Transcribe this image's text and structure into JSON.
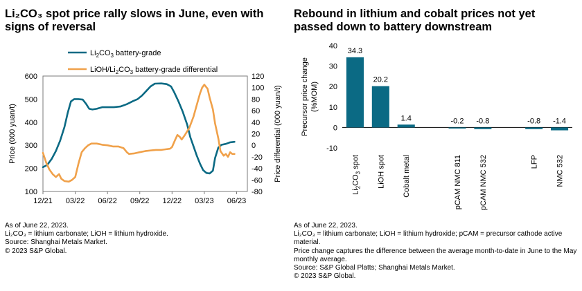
{
  "left": {
    "title": "Li₂CO₃ spot price rally slows in June, even with signs of reversal",
    "notes": [
      "As of June 22, 2023.",
      "Li₂CO₃ = lithium carbonate; LiOH = lithium hydroxide.",
      "Source: Shanghai Metals Market.",
      "© 2023 S&P Global."
    ]
  },
  "right": {
    "title": "Rebound in lithium and cobalt prices not yet passed down to battery downstream",
    "notes": [
      "As of June 22, 2023.",
      "Li₂CO₃ = lithium carbonate; LiOH = lithium hydroxide; pCAM = precursor cathode active material.",
      "Price change captures the difference between the average month-to-date in June to the May monthly average.",
      "Source: S&P Global Platts; Shanghai Metals Market.",
      "© 2023 S&P Global."
    ]
  },
  "chart_data": [
    {
      "type": "line",
      "title": "Li₂CO₃ spot price rally slows in June, even with signs of reversal",
      "xlabel": "",
      "ylabel": "Price (000 yuan/t)",
      "y2label": "Price differential (000 yuan/t)",
      "x_ticks": [
        "12/21",
        "03/22",
        "06/22",
        "09/22",
        "12/22",
        "03/23",
        "06/23"
      ],
      "ylim": [
        100,
        600
      ],
      "y_ticks": [
        100,
        200,
        300,
        400,
        500,
        600
      ],
      "y2lim": [
        -80,
        120
      ],
      "y2_ticks": [
        -80,
        -60,
        -40,
        -20,
        0,
        20,
        40,
        60,
        80,
        100,
        120
      ],
      "x_range_months": [
        0,
        19
      ],
      "series": [
        {
          "name": "Li₂CO₃ battery-grade",
          "axis": "left",
          "color": "#0b6a84",
          "points": [
            [
              0,
              205
            ],
            [
              0.4,
              215
            ],
            [
              0.8,
              240
            ],
            [
              1.2,
              275
            ],
            [
              1.6,
              320
            ],
            [
              2.0,
              380
            ],
            [
              2.3,
              440
            ],
            [
              2.6,
              490
            ],
            [
              2.9,
              500
            ],
            [
              3.3,
              500
            ],
            [
              3.7,
              498
            ],
            [
              4.0,
              480
            ],
            [
              4.3,
              458
            ],
            [
              4.6,
              455
            ],
            [
              5.0,
              458
            ],
            [
              5.5,
              465
            ],
            [
              6.0,
              465
            ],
            [
              6.6,
              465
            ],
            [
              7.2,
              468
            ],
            [
              7.8,
              478
            ],
            [
              8.4,
              492
            ],
            [
              8.8,
              500
            ],
            [
              9.2,
              515
            ],
            [
              9.6,
              535
            ],
            [
              10.0,
              555
            ],
            [
              10.4,
              567
            ],
            [
              11.0,
              568
            ],
            [
              11.5,
              565
            ],
            [
              11.9,
              555
            ],
            [
              12.2,
              530
            ],
            [
              12.6,
              490
            ],
            [
              13.0,
              445
            ],
            [
              13.4,
              390
            ],
            [
              13.7,
              335
            ],
            [
              14.0,
              295
            ],
            [
              14.3,
              255
            ],
            [
              14.6,
              220
            ],
            [
              14.9,
              192
            ],
            [
              15.2,
              180
            ],
            [
              15.5,
              178
            ],
            [
              15.8,
              190
            ],
            [
              16.0,
              245
            ],
            [
              16.3,
              290
            ],
            [
              16.6,
              302
            ],
            [
              17.0,
              306
            ],
            [
              17.4,
              313
            ],
            [
              17.8,
              315
            ]
          ]
        },
        {
          "name": "LiOH/Li₂CO₃ battery-grade differential",
          "axis": "right",
          "color": "#f0a14a",
          "points": [
            [
              0,
              -13
            ],
            [
              0.3,
              -30
            ],
            [
              0.6,
              -42
            ],
            [
              0.9,
              -50
            ],
            [
              1.2,
              -55
            ],
            [
              1.5,
              -50
            ],
            [
              1.7,
              -58
            ],
            [
              2.0,
              -62
            ],
            [
              2.4,
              -63
            ],
            [
              2.7,
              -60
            ],
            [
              3.0,
              -55
            ],
            [
              3.3,
              -32
            ],
            [
              3.6,
              -12
            ],
            [
              3.9,
              -5
            ],
            [
              4.2,
              0
            ],
            [
              4.5,
              3
            ],
            [
              5.0,
              3
            ],
            [
              5.5,
              1
            ],
            [
              6.0,
              0
            ],
            [
              6.5,
              -2
            ],
            [
              7.0,
              -2
            ],
            [
              7.5,
              -5
            ],
            [
              7.8,
              -12
            ],
            [
              8.0,
              -15
            ],
            [
              8.5,
              -14
            ],
            [
              9.0,
              -12
            ],
            [
              9.5,
              -10
            ],
            [
              10.0,
              -9
            ],
            [
              10.5,
              -8
            ],
            [
              11.0,
              -8
            ],
            [
              11.4,
              -7
            ],
            [
              11.8,
              -6
            ],
            [
              12.0,
              -3
            ],
            [
              12.3,
              10
            ],
            [
              12.5,
              18
            ],
            [
              12.7,
              15
            ],
            [
              12.9,
              10
            ],
            [
              13.2,
              18
            ],
            [
              13.6,
              30
            ],
            [
              14.0,
              50
            ],
            [
              14.3,
              70
            ],
            [
              14.6,
              90
            ],
            [
              14.8,
              100
            ],
            [
              15.0,
              105
            ],
            [
              15.3,
              98
            ],
            [
              15.5,
              82
            ],
            [
              15.8,
              62
            ],
            [
              16.0,
              38
            ],
            [
              16.3,
              12
            ],
            [
              16.5,
              -10
            ],
            [
              16.8,
              -18
            ],
            [
              17.0,
              -15
            ],
            [
              17.2,
              -20
            ],
            [
              17.4,
              -12
            ],
            [
              17.6,
              -15
            ],
            [
              17.8,
              -15
            ]
          ]
        }
      ]
    },
    {
      "type": "bar",
      "title": "Rebound in lithium and cobalt prices not yet passed down to battery downstream",
      "xlabel": "",
      "ylabel": "Precursor price change (%MOM)",
      "ylim": [
        -10,
        40
      ],
      "y_ticks": [
        -10,
        0,
        10,
        20,
        30,
        40
      ],
      "categories": [
        "Li₂CO₃ spot",
        "LiOH spot",
        "Cobalt metal",
        "",
        "pCAM NMC 811",
        "pCAM NMC 532",
        "",
        "LFP",
        "NMC 532"
      ],
      "values": [
        34.3,
        20.2,
        1.4,
        null,
        -0.2,
        -0.8,
        null,
        -0.8,
        -1.4
      ],
      "data_labels": [
        "34.3",
        "20.2",
        "1.4",
        "",
        "-0.2",
        "-0.8",
        "",
        "-0.8",
        "-1.4"
      ],
      "color": "#0b6a84"
    }
  ]
}
